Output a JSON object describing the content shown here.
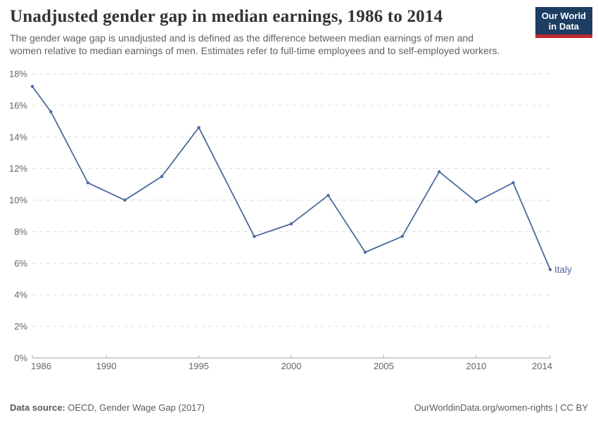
{
  "header": {
    "title": "Unadjusted gender gap in median earnings, 1986 to 2014",
    "subtitle": "The gender wage gap is unadjusted and is defined as the difference between median earnings of men and women relative to median earnings of men. Estimates refer to full-time employees and to self-employed workers."
  },
  "logo": {
    "line1": "Our World",
    "line2": "in Data",
    "bg_color": "#1d3d63",
    "accent_color": "#c0272d"
  },
  "chart_data": {
    "type": "line",
    "title": "Unadjusted gender gap in median earnings, 1986 to 2014",
    "xlabel": "",
    "ylabel": "",
    "x_range": [
      1986,
      2014
    ],
    "y_range": [
      0,
      18
    ],
    "x_ticks": [
      1986,
      1990,
      1995,
      2000,
      2005,
      2010,
      2014
    ],
    "y_ticks": [
      0,
      2,
      4,
      6,
      8,
      10,
      12,
      14,
      16,
      18
    ],
    "y_tick_suffix": "%",
    "grid": true,
    "legend_position": "end-of-line",
    "series": [
      {
        "name": "Italy",
        "color": "#4c6a9c",
        "x": [
          1986,
          1987,
          1989,
          1991,
          1993,
          1995,
          1998,
          2000,
          2002,
          2004,
          2006,
          2008,
          2010,
          2012,
          2014
        ],
        "y": [
          17.2,
          15.6,
          11.1,
          10.0,
          11.5,
          14.6,
          7.7,
          8.5,
          10.3,
          6.7,
          7.7,
          11.8,
          9.9,
          11.1,
          5.6
        ]
      }
    ]
  },
  "footer": {
    "source_label": "Data source:",
    "source_value": " OECD, Gender Wage Gap (2017)",
    "rights": "OurWorldinData.org/women-rights | CC BY"
  },
  "colors": {
    "line": "#4c6a9c",
    "grid": "#dddddd",
    "axis": "#a3a3a3",
    "tick_text": "#666666",
    "title_text": "#333333",
    "subtitle_text": "#616161"
  }
}
